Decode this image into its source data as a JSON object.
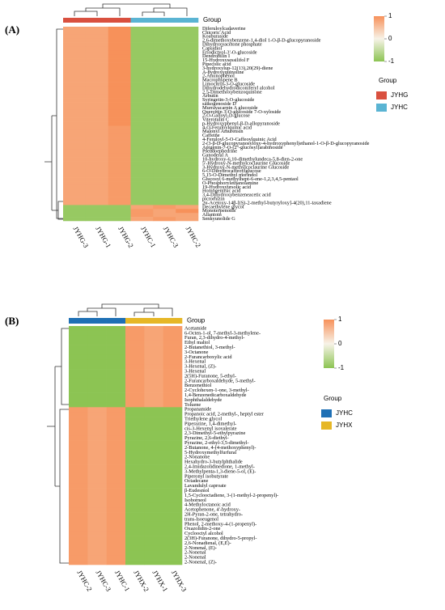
{
  "chart_data": [
    {
      "type": "heatmap",
      "panel_label": "(A)",
      "group_title": "Group",
      "legend_title": "Group",
      "columns": [
        "JYHG-3",
        "JYHG-1",
        "JYHG-2",
        "JYHC-1",
        "JYHC-3",
        "JYHC-2"
      ],
      "column_groups": [
        0,
        0,
        0,
        1,
        1,
        1
      ],
      "groups": [
        {
          "name": "JYHG",
          "color": "#d9503f"
        },
        {
          "name": "JYHC",
          "color": "#5ab4d3"
        }
      ],
      "zlim": [
        -1,
        1
      ],
      "zticks": [
        1,
        0,
        -1
      ],
      "colorscale": [
        "#8cc453",
        "#f7f3e8",
        "#f7915a"
      ],
      "rows": [
        "Diferuloylcadaverine",
        "Chicoric Acid",
        "Koaburaside",
        "2,6-dimethoxybenzene-1,4-diol 1-O-β-D-glucopyranoside",
        "Dihydroxyacetone phosphate",
        "Capsidiol",
        "Eriodictyol-3'-O-glucoside",
        "Dendrobilin I",
        "15-Hydroxysessilifol F",
        "Pipecolic acid",
        "3-hydroxylup-12(13),20(29)-diene",
        "A-hydroxyquinoline",
        "2-Aminophenol",
        "Macrophypene B",
        "Limocitrin-3-O-glucoside",
        "Dihydrodehydrodiconiferyl alcohol",
        "2,5-Dimethoxybenzoquinone",
        "Arbutin",
        "Syringetin-3-O-glucoside",
        "saikogenoside D",
        "Murrayacarpin A glucoside",
        "Quercetin 3-O-glucoside 7-O-xyloside",
        "2-O-Galloyl-D-glucose",
        "Viterotulin C",
        "p-Hydroxyphenyl-β-D-allopyranoside",
        "4-O-Feruloylquinic acid",
        "Malonyl Amurensin",
        "Caffeine",
        "4-Feruloyl-5-O-Caffeoylquinic Acid",
        "2-(3-β-D-glucopyranosyloxy-4-hydroxyphenyl)ethanol-1-O-β-D-glucopyranoside",
        "Apigenin-7-O-[2''-glucosyl]arabinoside",
        "Pseudoephedrine",
        "Ganoderal A",
        "10-hydroxy-6,10-dimethylundeca-5,8-dien-2-one",
        "5'-Hydroxy-N-methylcoclaurine Glucoside",
        "3-Hydroxy-N-methylcoclaurine Glucoside",
        "6-O-Dihydrocaffeoylglucose",
        "5,15-O-Dimethyl morindol",
        "Glucosyl 6-methylhept-6-ene-1,2,3,4,5-pentaol",
        "O-Phosphorylethanolamine",
        "19-Hydroxyursolic acid",
        "Homogentisic acid",
        "3,4-Dihydroxybenzeneacetic acid",
        "picrorhizin",
        "2α-Acetoxy-14β-[(S)-2-methyl-butyryloxy]-4(20),11-taxadiene",
        "Decaethylene glycol",
        "Monoterpenoids",
        "Allantoin",
        "Senkyunolide G"
      ],
      "values": [
        [
          0.8,
          0.8,
          1,
          -0.9,
          -0.9,
          -0.9
        ],
        [
          0.8,
          0.8,
          1,
          -0.9,
          -0.9,
          -0.9
        ],
        [
          0.8,
          0.8,
          1,
          -0.9,
          -0.9,
          -0.9
        ],
        [
          0.8,
          0.8,
          1,
          -0.9,
          -0.9,
          -0.9
        ],
        [
          0.8,
          0.8,
          1,
          -0.9,
          -0.9,
          -0.9
        ],
        [
          0.8,
          0.8,
          1,
          -0.9,
          -0.9,
          -0.9
        ],
        [
          0.8,
          0.8,
          1,
          -0.9,
          -0.9,
          -0.9
        ],
        [
          0.8,
          0.8,
          1,
          -0.9,
          -0.9,
          -0.9
        ],
        [
          0.8,
          0.8,
          1,
          -0.9,
          -0.9,
          -0.9
        ],
        [
          0.8,
          0.8,
          1,
          -0.9,
          -0.9,
          -0.9
        ],
        [
          0.8,
          0.8,
          1,
          -0.9,
          -0.9,
          -0.9
        ],
        [
          0.8,
          0.8,
          1,
          -0.9,
          -0.9,
          -0.9
        ],
        [
          0.8,
          0.8,
          1,
          -0.9,
          -0.9,
          -0.9
        ],
        [
          0.8,
          0.8,
          1,
          -0.9,
          -0.9,
          -0.9
        ],
        [
          0.8,
          0.8,
          1,
          -0.9,
          -0.9,
          -0.9
        ],
        [
          0.8,
          0.8,
          1,
          -0.9,
          -0.9,
          -0.9
        ],
        [
          0.8,
          0.8,
          1,
          -0.9,
          -0.9,
          -0.9
        ],
        [
          0.8,
          0.8,
          1,
          -0.9,
          -0.9,
          -0.9
        ],
        [
          0.8,
          0.8,
          1,
          -0.9,
          -0.9,
          -0.9
        ],
        [
          0.8,
          0.8,
          1,
          -0.9,
          -0.9,
          -0.9
        ],
        [
          0.8,
          0.8,
          1,
          -0.9,
          -0.9,
          -0.9
        ],
        [
          0.8,
          0.8,
          1,
          -0.9,
          -0.9,
          -0.9
        ],
        [
          0.8,
          0.8,
          1,
          -0.9,
          -0.9,
          -0.9
        ],
        [
          0.8,
          0.8,
          1,
          -0.9,
          -0.9,
          -0.9
        ],
        [
          0.8,
          0.8,
          1,
          -0.9,
          -0.9,
          -0.9
        ],
        [
          0.8,
          0.8,
          0.9,
          -0.9,
          -0.9,
          -0.9
        ],
        [
          0.8,
          0.8,
          0.9,
          -0.9,
          -0.9,
          -0.9
        ],
        [
          0.8,
          0.8,
          0.9,
          -0.9,
          -0.9,
          -0.9
        ],
        [
          0.8,
          0.8,
          0.9,
          -0.9,
          -0.9,
          -0.9
        ],
        [
          0.8,
          0.8,
          0.9,
          -0.9,
          -0.9,
          -0.9
        ],
        [
          0.8,
          0.8,
          0.9,
          -0.9,
          -0.9,
          -0.9
        ],
        [
          0.8,
          0.8,
          0.9,
          -0.9,
          -0.9,
          -0.9
        ],
        [
          0.8,
          0.8,
          0.9,
          -0.9,
          -0.9,
          -0.9
        ],
        [
          0.8,
          0.8,
          0.9,
          -0.9,
          -0.9,
          -0.9
        ],
        [
          0.8,
          0.8,
          0.9,
          -0.9,
          -0.9,
          -0.9
        ],
        [
          0.8,
          0.8,
          0.9,
          -0.9,
          -0.9,
          -0.9
        ],
        [
          0.8,
          0.8,
          0.9,
          -0.9,
          -0.9,
          -0.9
        ],
        [
          0.8,
          0.8,
          0.9,
          -0.9,
          -0.9,
          -0.9
        ],
        [
          0.8,
          0.8,
          0.9,
          -0.9,
          -0.9,
          -0.9
        ],
        [
          0.8,
          0.8,
          0.9,
          -0.9,
          -0.9,
          -0.9
        ],
        [
          0.8,
          0.8,
          0.9,
          -0.9,
          -0.9,
          -0.9
        ],
        [
          0.8,
          0.8,
          0.9,
          -0.9,
          -0.9,
          -0.9
        ],
        [
          0.8,
          0.8,
          0.9,
          -0.9,
          -0.9,
          -0.9
        ],
        [
          0.8,
          0.8,
          0.9,
          -0.9,
          -0.9,
          -0.9
        ],
        [
          0.8,
          0.8,
          0.9,
          -0.9,
          -0.9,
          -0.9
        ],
        [
          -0.9,
          -0.9,
          -0.9,
          0.8,
          0.9,
          0.8
        ],
        [
          -0.9,
          -0.9,
          -0.9,
          0.9,
          0.8,
          1
        ],
        [
          -0.9,
          -0.9,
          -0.9,
          0.9,
          0.8,
          0.8
        ],
        [
          -0.9,
          -0.9,
          -0.9,
          0.8,
          0.9,
          0.8
        ]
      ]
    },
    {
      "type": "heatmap",
      "panel_label": "(B)",
      "group_title": "Group",
      "legend_title": "Group",
      "columns": [
        "JYHC-2",
        "JYHC-3",
        "JYHC-1",
        "JYHX-2",
        "JYHX-1",
        "JYHX-3"
      ],
      "column_groups": [
        0,
        0,
        0,
        1,
        1,
        1
      ],
      "groups": [
        {
          "name": "JYHC",
          "color": "#1f70b5"
        },
        {
          "name": "JYHX",
          "color": "#e6b727"
        }
      ],
      "zlim": [
        -1,
        1
      ],
      "zticks": [
        1,
        0,
        -1
      ],
      "colorscale": [
        "#8cc453",
        "#f7f3e8",
        "#f7915a"
      ],
      "rows": [
        "Acetamide",
        "6-Octen-1-ol, 7-methyl-3-methylene-",
        "Furan, 2,3-dihydro-4-methyl-",
        "Ethyl maltol",
        "2-Butanethiol, 3-methyl-",
        "3-Octanone",
        "2-Furancarboxylic acid",
        "3-Hexenal",
        "3-Hexenal, (Z)-",
        "3-Hexenal",
        "2(5H)-Furanone, 5-ethyl-",
        "2-Furancarboxaldehyde, 5-methyl-",
        "Benzenethiol",
        "2-Cyclohexen-1-one, 3-methyl-",
        "1,4-Benzenedicarboxaldehyde",
        "Isophthalaldehyde",
        "Toluene",
        "Propanamide",
        "Propanoic acid, 2-methyl-, heptyl ester",
        "Triethylene glycol",
        "Piperazine, 1,4-dimethyl-",
        "cis-3-Hexenyl isovalerate",
        "2,3-Dimethyl-5-ethylpyrazine",
        "Pyrazine, 2,6-diethyl-",
        "Pyrazine, 2-ethyl-3,5-dimethyl-",
        "2-Butanone, 4-(4-methoxyphenyl)-",
        "5-Hydroxymethylfurfural",
        "2-Nonanone",
        "Hexahydro-3-butylphthalide",
        "2,4-Imidazolidinedione, 1-methyl-",
        "3-Methylpenta-1,3-diene-5-ol, (E)-",
        "Piperonyl isobutyrate",
        "Octadecane",
        "Lavandulyl caproate",
        "β-Eudesmol",
        "1,5-Cyclooctadiene, 3-(1-methyl-2-propenyl)-",
        "Isoborneol",
        "4-Methyloctanoic acid",
        "Acetophenone, 4'-hydroxy-",
        "2H-Pyran-2-one, tetrahydro-",
        "trans-Isoeugenol",
        "Phenol, 2-methoxy-4-(1-propenyl)-",
        "Oxazolidin-2-one",
        "Cyclooctyl alcohol",
        "2(3H)-Furanone, dihydro-5-propyl-",
        "2,6-Nonadienal, (E,E)-",
        "2-Nonenal, (E)-",
        "2-Nonenal",
        "2-Nonenal",
        "2-Nonenal, (Z)-"
      ],
      "values": [
        [
          -1,
          -1,
          -1,
          0.9,
          0.8,
          0.9
        ],
        [
          -1,
          -1,
          -1,
          0.9,
          0.8,
          0.9
        ],
        [
          -1,
          -1,
          -1,
          0.9,
          0.8,
          0.9
        ],
        [
          -1,
          -1,
          -1,
          0.9,
          0.8,
          0.9
        ],
        [
          -1,
          -1,
          -1,
          0.9,
          0.8,
          0.9
        ],
        [
          -1,
          -1,
          -1,
          0.9,
          0.8,
          0.9
        ],
        [
          -1,
          -1,
          -1,
          0.9,
          0.8,
          0.9
        ],
        [
          -1,
          -1,
          -1,
          0.9,
          0.8,
          0.9
        ],
        [
          -1,
          -1,
          -1,
          0.9,
          0.8,
          0.9
        ],
        [
          -1,
          -1,
          -1,
          0.9,
          0.8,
          0.9
        ],
        [
          -1,
          -1,
          -1,
          0.9,
          0.8,
          0.9
        ],
        [
          -1,
          -1,
          -1,
          0.9,
          0.8,
          0.9
        ],
        [
          -1,
          -1,
          -1,
          0.9,
          0.8,
          0.9
        ],
        [
          -1,
          -1,
          -1,
          0.9,
          0.8,
          0.9
        ],
        [
          -1,
          -1,
          -1,
          0.9,
          0.8,
          0.9
        ],
        [
          -1,
          -1,
          -1,
          0.9,
          0.8,
          0.9
        ],
        [
          -1,
          -1,
          -1,
          0.9,
          0.8,
          0.9
        ],
        [
          0.9,
          0.8,
          0.9,
          -1,
          -1,
          -1
        ],
        [
          0.9,
          0.8,
          0.9,
          -1,
          -1,
          -1
        ],
        [
          0.9,
          0.8,
          0.9,
          -1,
          -1,
          -1
        ],
        [
          0.9,
          0.8,
          0.9,
          -1,
          -1,
          -1
        ],
        [
          0.9,
          0.8,
          0.9,
          -1,
          -1,
          -1
        ],
        [
          0.9,
          0.8,
          0.9,
          -1,
          -1,
          -1
        ],
        [
          0.9,
          0.8,
          0.9,
          -1,
          -1,
          -1
        ],
        [
          0.9,
          0.8,
          0.9,
          -1,
          -1,
          -1
        ],
        [
          0.9,
          0.8,
          0.9,
          -1,
          -1,
          -1
        ],
        [
          0.9,
          0.8,
          0.9,
          -1,
          -1,
          -1
        ],
        [
          0.9,
          0.8,
          0.9,
          -1,
          -1,
          -1
        ],
        [
          0.9,
          0.8,
          0.9,
          -1,
          -1,
          -1
        ],
        [
          0.9,
          0.8,
          0.9,
          -1,
          -1,
          -1
        ],
        [
          0.9,
          0.8,
          0.9,
          -1,
          -1,
          -1
        ],
        [
          0.9,
          0.8,
          0.9,
          -1,
          -1,
          -1
        ],
        [
          0.9,
          0.8,
          0.9,
          -1,
          -1,
          -1
        ],
        [
          0.9,
          0.8,
          0.9,
          -1,
          -1,
          -1
        ],
        [
          0.9,
          0.8,
          0.9,
          -1,
          -1,
          -1
        ],
        [
          0.9,
          0.8,
          0.9,
          -1,
          -1,
          -1
        ],
        [
          0.9,
          0.8,
          0.9,
          -1,
          -1,
          -1
        ],
        [
          0.9,
          0.8,
          0.9,
          -1,
          -1,
          -1
        ],
        [
          0.9,
          0.8,
          0.9,
          -1,
          -1,
          -1
        ],
        [
          0.9,
          0.8,
          0.9,
          -1,
          -1,
          -1
        ],
        [
          0.9,
          0.8,
          0.9,
          -1,
          -1,
          -1
        ],
        [
          0.9,
          0.8,
          0.9,
          -1,
          -1,
          -1
        ],
        [
          0.9,
          0.8,
          0.9,
          -1,
          -1,
          -1
        ],
        [
          0.9,
          0.8,
          0.9,
          -1,
          -1,
          -1
        ],
        [
          0.9,
          0.8,
          0.9,
          -1,
          -1,
          -1
        ],
        [
          0.9,
          0.8,
          0.9,
          -1,
          -1,
          -1
        ],
        [
          0.9,
          0.8,
          0.9,
          -1,
          -1,
          -1
        ],
        [
          0.9,
          0.8,
          0.9,
          -1,
          -1,
          -1
        ],
        [
          0.9,
          0.8,
          0.9,
          -1,
          -1,
          -1
        ],
        [
          0.9,
          0.8,
          0.9,
          -1,
          -1,
          -1
        ]
      ]
    }
  ]
}
